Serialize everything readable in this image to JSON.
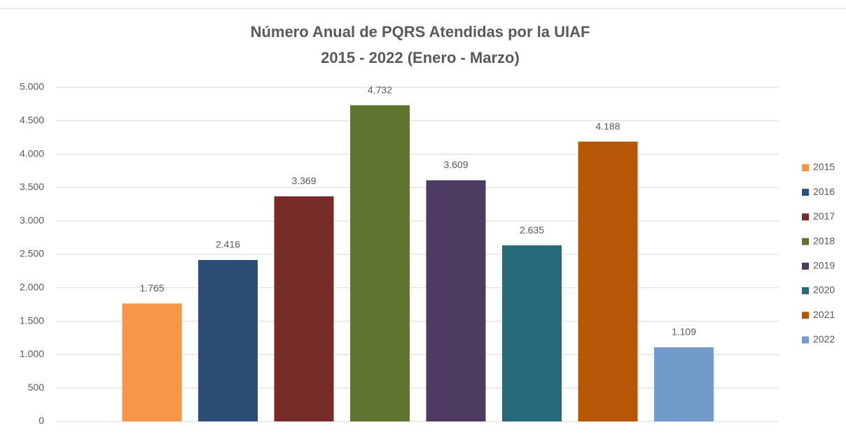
{
  "chart_data": {
    "type": "bar",
    "title": "Número Anual de PQRS Atendidas por la UIAF",
    "subtitle": "2015 - 2022 (Enero - Marzo)",
    "series": [
      {
        "name": "2015",
        "color": "#f79646",
        "values": [
          1765
        ],
        "value_labels": [
          "1.765"
        ]
      },
      {
        "name": "2016",
        "color": "#2c4d75",
        "values": [
          2416
        ],
        "value_labels": [
          "2.416"
        ]
      },
      {
        "name": "2017",
        "color": "#772c2a",
        "values": [
          3369
        ],
        "value_labels": [
          "3.369"
        ]
      },
      {
        "name": "2018",
        "color": "#5f7530",
        "values": [
          4732
        ],
        "value_labels": [
          "4.732"
        ]
      },
      {
        "name": "2019",
        "color": "#4d3b62",
        "values": [
          3609
        ],
        "value_labels": [
          "3.609"
        ]
      },
      {
        "name": "2020",
        "color": "#276a7c",
        "values": [
          2635
        ],
        "value_labels": [
          "2.635"
        ]
      },
      {
        "name": "2021",
        "color": "#b65708",
        "values": [
          4188
        ],
        "value_labels": [
          "4.188"
        ]
      },
      {
        "name": "2022",
        "color": "#729aca",
        "values": [
          1109
        ],
        "value_labels": [
          "1.109"
        ]
      }
    ],
    "ylim": [
      0,
      5000
    ],
    "yticks": [
      0,
      500,
      {
        "value": 1000,
        "label": "1.000"
      },
      {
        "value": 1500,
        "label": "1.500"
      },
      {
        "value": 2000,
        "label": "2.000"
      },
      {
        "value": 2500,
        "label": "2.500"
      },
      {
        "value": 3000,
        "label": "3.000"
      },
      {
        "value": 3500,
        "label": "3.500"
      },
      {
        "value": 4000,
        "label": "4.000"
      },
      {
        "value": 4500,
        "label": "4.500"
      },
      {
        "value": 5000,
        "label": "5.000"
      }
    ],
    "grid": true,
    "legend": "right"
  }
}
